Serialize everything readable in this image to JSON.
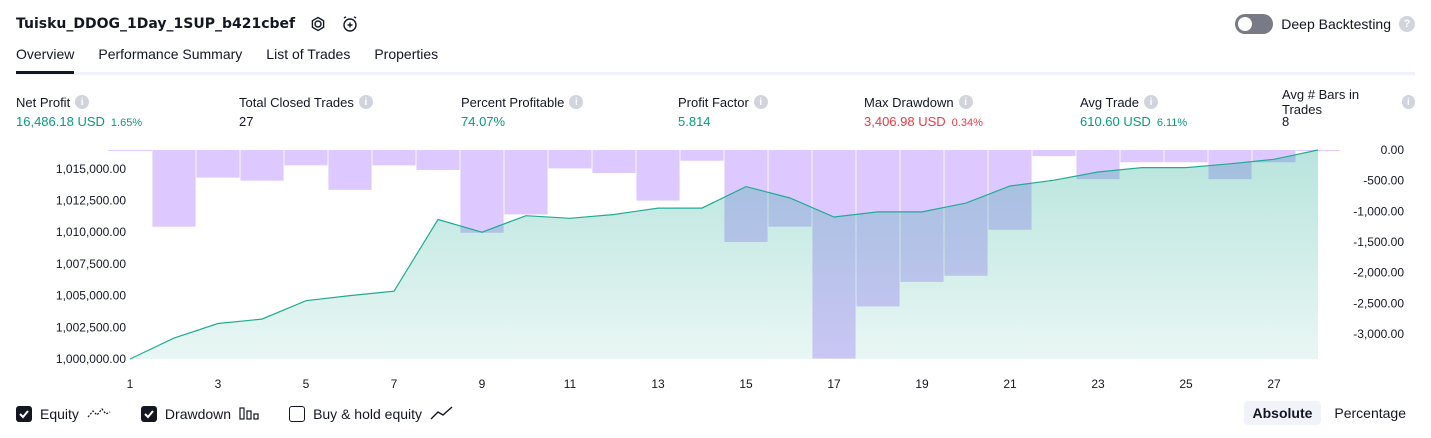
{
  "header": {
    "title": "Tuisku_DDOG_1Day_1SUP_b421cbef",
    "settings_icon": "gear-icon",
    "alert_icon": "add-alert-icon"
  },
  "deep_backtesting": {
    "label": "Deep Backtesting",
    "enabled": false,
    "help": "?"
  },
  "tabs": [
    {
      "label": "Overview",
      "active": true
    },
    {
      "label": "Performance Summary",
      "active": false
    },
    {
      "label": "List of Trades",
      "active": false
    },
    {
      "label": "Properties",
      "active": false
    }
  ],
  "metrics": [
    {
      "label": "Net Profit",
      "value": "16,486.18 USD",
      "pct": "1.65%",
      "color": "#089981"
    },
    {
      "label": "Total Closed Trades",
      "value": "27",
      "pct": "",
      "color": "#131722"
    },
    {
      "label": "Percent Profitable",
      "value": "74.07%",
      "pct": "",
      "color": "#089981"
    },
    {
      "label": "Profit Factor",
      "value": "5.814",
      "pct": "",
      "color": "#089981"
    },
    {
      "label": "Max Drawdown",
      "value": "3,406.98 USD",
      "pct": "0.34%",
      "color": "#f23645"
    },
    {
      "label": "Avg Trade",
      "value": "610.60 USD",
      "pct": "6.11%",
      "color": "#089981"
    },
    {
      "label": "Avg # Bars in Trades",
      "value": "8",
      "pct": "",
      "color": "#131722"
    }
  ],
  "chart_data": {
    "type": "line",
    "x": [
      1,
      2,
      3,
      4,
      5,
      6,
      7,
      8,
      9,
      10,
      11,
      12,
      13,
      14,
      15,
      16,
      17,
      18,
      19,
      20,
      21,
      22,
      23,
      24,
      25,
      26,
      27,
      28
    ],
    "x_tick_labels": [
      "1",
      "3",
      "5",
      "7",
      "9",
      "11",
      "13",
      "15",
      "17",
      "19",
      "21",
      "23",
      "25",
      "27"
    ],
    "series": [
      {
        "name": "Equity",
        "axis": "left",
        "color": "#22ab94",
        "values": [
          1000000,
          1001650,
          1002800,
          1003150,
          1004600,
          1005000,
          1005350,
          1011000,
          1010000,
          1011300,
          1011100,
          1011400,
          1011900,
          1011900,
          1013600,
          1012700,
          1011200,
          1011600,
          1011600,
          1012300,
          1013650,
          1014100,
          1014750,
          1015100,
          1015100,
          1015400,
          1015750,
          1016486
        ]
      },
      {
        "name": "Drawdown",
        "axis": "right",
        "color": "#ce93d8",
        "values": [
          0,
          -1250,
          -450,
          -500,
          -250,
          -650,
          -250,
          -325,
          -1350,
          -1050,
          -300,
          -375,
          -825,
          -175,
          -1500,
          -1250,
          -3400,
          -2550,
          -2150,
          -2050,
          -1300,
          -100,
          -475,
          -200,
          -200,
          -475,
          -200,
          0
        ]
      }
    ],
    "y_left": {
      "min": 1000000,
      "max": 1016486,
      "tick_labels": [
        "1,015,000.00",
        "1,012,500.00",
        "1,010,000.00",
        "1,007,500.00",
        "1,005,000.00",
        "1,002,500.00",
        "1,000,000.00"
      ],
      "tick_values": [
        1015000,
        1012500,
        1010000,
        1007500,
        1005000,
        1002500,
        1000000
      ]
    },
    "y_right": {
      "min": -3406.98,
      "max": 0,
      "tick_labels": [
        "0.00",
        "-500.00",
        "-1,000.00",
        "-1,500.00",
        "-2,000.00",
        "-2,500.00",
        "-3,000.00"
      ],
      "tick_values": [
        0,
        -500,
        -1000,
        -1500,
        -2000,
        -2500,
        -3000
      ]
    },
    "grid": false
  },
  "legend": [
    {
      "label": "Equity",
      "checked": true,
      "icon": "equity-line-icon"
    },
    {
      "label": "Drawdown",
      "checked": true,
      "icon": "drawdown-bars-icon"
    },
    {
      "label": "Buy & hold equity",
      "checked": false,
      "icon": "buy-hold-line-icon"
    }
  ],
  "view_mode": [
    {
      "label": "Absolute",
      "active": true
    },
    {
      "label": "Percentage",
      "active": false
    }
  ]
}
